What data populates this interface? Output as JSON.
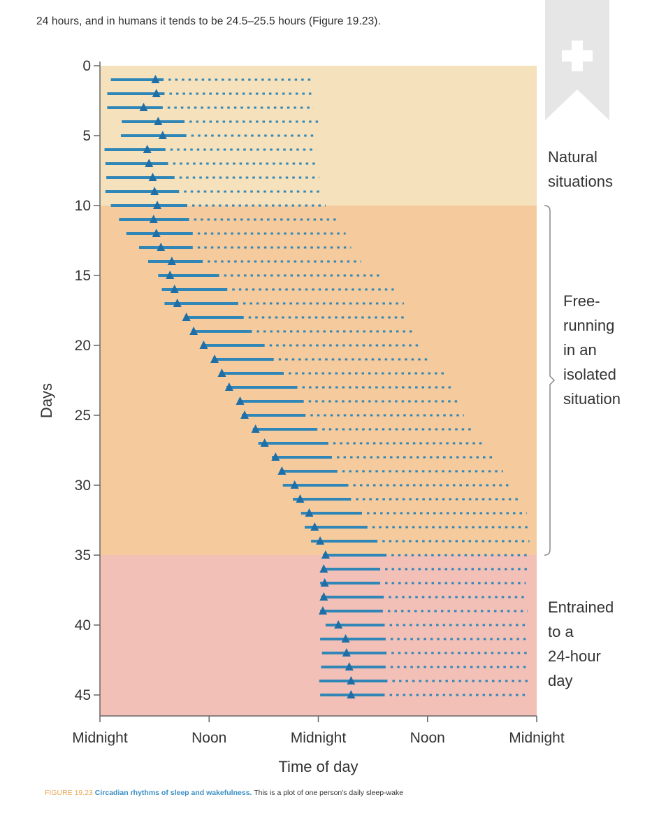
{
  "top_text": "24 hours, and in humans it tends to be 24.5–25.5 hours (Figure 19.23).",
  "caption": {
    "figure_label": "FIGURE 19.23",
    "title": "Circadian rhythms of sleep and wakefulness.",
    "text": "This is a plot of one person's daily sleep-wake"
  },
  "colors": {
    "natural_bg": "#f5e1bc",
    "free_bg": "#f5cb9e",
    "entrained_bg": "#f2c0b7",
    "bar": "#2f86b7",
    "marker": "#1f6fa6",
    "bookmark": "#e6e6e6"
  },
  "icons": {
    "bookmark": "bookmark-plus-icon"
  },
  "chart_data": {
    "type": "scatter",
    "title": "",
    "xlabel": "Time of day",
    "ylabel": "Days",
    "x_unit": "hours from midnight",
    "xlim": [
      0,
      48
    ],
    "ylim": [
      0,
      46.5
    ],
    "x_ticks": [
      {
        "value": 0,
        "label": "Midnight"
      },
      {
        "value": 12,
        "label": "Noon"
      },
      {
        "value": 24,
        "label": "Midnight"
      },
      {
        "value": 36,
        "label": "Noon"
      },
      {
        "value": 48,
        "label": "Midnight"
      }
    ],
    "y_ticks": [
      0,
      5,
      10,
      15,
      20,
      25,
      30,
      35,
      40,
      45
    ],
    "regions": [
      {
        "label": "Natural situations",
        "lines": [
          "Natural",
          "situations"
        ],
        "from_day": 0,
        "to_day": 10
      },
      {
        "label": "Free-running in an isolated situation",
        "lines": [
          "Free-",
          "running",
          "in an",
          "isolated",
          "situation"
        ],
        "from_day": 10,
        "to_day": 35
      },
      {
        "label": "Entrained to a 24-hour day",
        "lines": [
          "Entrained",
          "to a",
          "24-hour",
          "day"
        ],
        "from_day": 35,
        "to_day": 46.5
      }
    ],
    "series_note": "Per day: solid bar = wakefulness (start, end), dotted segment = sleep (end), triangle = marker",
    "days": [
      {
        "day": 1,
        "wake_start": 1.2,
        "marker": 6.1,
        "wake_end": 7.0,
        "sleep_end": 23.6
      },
      {
        "day": 2,
        "wake_start": 0.8,
        "marker": 6.2,
        "wake_end": 7.1,
        "sleep_end": 23.6
      },
      {
        "day": 3,
        "wake_start": 0.8,
        "marker": 4.8,
        "wake_end": 6.9,
        "sleep_end": 23.5
      },
      {
        "day": 4,
        "wake_start": 2.4,
        "marker": 6.4,
        "wake_end": 9.3,
        "sleep_end": 24.4
      },
      {
        "day": 5,
        "wake_start": 2.3,
        "marker": 6.9,
        "wake_end": 9.5,
        "sleep_end": 23.9
      },
      {
        "day": 6,
        "wake_start": 0.5,
        "marker": 5.2,
        "wake_end": 7.2,
        "sleep_end": 23.8
      },
      {
        "day": 7,
        "wake_start": 0.6,
        "marker": 5.4,
        "wake_end": 7.5,
        "sleep_end": 24.0
      },
      {
        "day": 8,
        "wake_start": 0.7,
        "marker": 5.8,
        "wake_end": 8.2,
        "sleep_end": 24.1
      },
      {
        "day": 9,
        "wake_start": 0.6,
        "marker": 6.0,
        "wake_end": 8.7,
        "sleep_end": 24.3
      },
      {
        "day": 10,
        "wake_start": 1.2,
        "marker": 6.3,
        "wake_end": 9.6,
        "sleep_end": 24.8
      },
      {
        "day": 11,
        "wake_start": 2.1,
        "marker": 5.9,
        "wake_end": 9.8,
        "sleep_end": 26.0
      },
      {
        "day": 12,
        "wake_start": 2.9,
        "marker": 6.2,
        "wake_end": 10.2,
        "sleep_end": 27.0
      },
      {
        "day": 13,
        "wake_start": 4.3,
        "marker": 6.7,
        "wake_end": 10.2,
        "sleep_end": 27.6
      },
      {
        "day": 14,
        "wake_start": 5.3,
        "marker": 7.9,
        "wake_end": 11.3,
        "sleep_end": 28.7
      },
      {
        "day": 15,
        "wake_start": 6.4,
        "marker": 7.7,
        "wake_end": 13.1,
        "sleep_end": 30.9
      },
      {
        "day": 16,
        "wake_start": 6.8,
        "marker": 8.2,
        "wake_end": 14.0,
        "sleep_end": 32.3
      },
      {
        "day": 17,
        "wake_start": 7.1,
        "marker": 8.5,
        "wake_end": 15.2,
        "sleep_end": 33.4
      },
      {
        "day": 18,
        "wake_start": 9.3,
        "marker": 9.5,
        "wake_end": 15.8,
        "sleep_end": 33.7
      },
      {
        "day": 19,
        "wake_start": 10.2,
        "marker": 10.3,
        "wake_end": 16.7,
        "sleep_end": 34.6
      },
      {
        "day": 20,
        "wake_start": 11.3,
        "marker": 11.4,
        "wake_end": 18.1,
        "sleep_end": 35.1
      },
      {
        "day": 21,
        "wake_start": 12.5,
        "marker": 12.6,
        "wake_end": 19.1,
        "sleep_end": 36.3
      },
      {
        "day": 22,
        "wake_start": 13.3,
        "marker": 13.4,
        "wake_end": 20.2,
        "sleep_end": 37.8
      },
      {
        "day": 23,
        "wake_start": 13.9,
        "marker": 14.2,
        "wake_end": 21.7,
        "sleep_end": 38.7
      },
      {
        "day": 24,
        "wake_start": 15.3,
        "marker": 15.4,
        "wake_end": 22.4,
        "sleep_end": 39.3
      },
      {
        "day": 25,
        "wake_start": 15.6,
        "marker": 15.9,
        "wake_end": 22.6,
        "sleep_end": 40.0
      },
      {
        "day": 26,
        "wake_start": 16.8,
        "marker": 17.1,
        "wake_end": 23.9,
        "sleep_end": 41.2
      },
      {
        "day": 27,
        "wake_start": 17.4,
        "marker": 18.1,
        "wake_end": 25.1,
        "sleep_end": 42.3
      },
      {
        "day": 28,
        "wake_start": 18.9,
        "marker": 19.3,
        "wake_end": 25.5,
        "sleep_end": 43.3
      },
      {
        "day": 29,
        "wake_start": 19.8,
        "marker": 20.0,
        "wake_end": 26.1,
        "sleep_end": 44.3
      },
      {
        "day": 30,
        "wake_start": 20.1,
        "marker": 21.4,
        "wake_end": 27.3,
        "sleep_end": 45.2
      },
      {
        "day": 31,
        "wake_start": 21.2,
        "marker": 22.0,
        "wake_end": 27.6,
        "sleep_end": 46.1
      },
      {
        "day": 32,
        "wake_start": 22.1,
        "marker": 23.0,
        "wake_end": 28.8,
        "sleep_end": 46.9
      },
      {
        "day": 33,
        "wake_start": 22.5,
        "marker": 23.6,
        "wake_end": 29.4,
        "sleep_end": 47.1
      },
      {
        "day": 34,
        "wake_start": 23.2,
        "marker": 24.2,
        "wake_end": 30.5,
        "sleep_end": 47.2
      },
      {
        "day": 35,
        "wake_start": 24.5,
        "marker": 24.8,
        "wake_end": 31.5,
        "sleep_end": 47.3
      },
      {
        "day": 36,
        "wake_start": 24.4,
        "marker": 24.6,
        "wake_end": 30.8,
        "sleep_end": 47.0
      },
      {
        "day": 37,
        "wake_start": 24.2,
        "marker": 24.7,
        "wake_end": 30.8,
        "sleep_end": 46.8
      },
      {
        "day": 38,
        "wake_start": 24.3,
        "marker": 24.6,
        "wake_end": 31.2,
        "sleep_end": 46.7
      },
      {
        "day": 39,
        "wake_start": 24.2,
        "marker": 24.5,
        "wake_end": 31.1,
        "sleep_end": 47.0
      },
      {
        "day": 40,
        "wake_start": 24.8,
        "marker": 26.2,
        "wake_end": 31.3,
        "sleep_end": 46.8
      },
      {
        "day": 41,
        "wake_start": 24.2,
        "marker": 27.0,
        "wake_end": 31.4,
        "sleep_end": 47.0
      },
      {
        "day": 42,
        "wake_start": 24.4,
        "marker": 27.1,
        "wake_end": 31.5,
        "sleep_end": 46.9
      },
      {
        "day": 43,
        "wake_start": 24.3,
        "marker": 27.4,
        "wake_end": 31.4,
        "sleep_end": 47.1
      },
      {
        "day": 44,
        "wake_start": 24.1,
        "marker": 27.6,
        "wake_end": 31.6,
        "sleep_end": 47.0
      },
      {
        "day": 45,
        "wake_start": 24.2,
        "marker": 27.6,
        "wake_end": 31.3,
        "sleep_end": 46.9
      }
    ]
  }
}
